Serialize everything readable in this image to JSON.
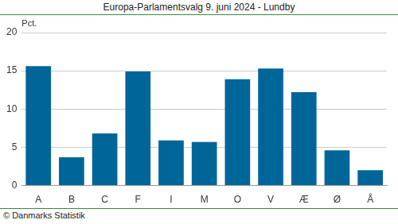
{
  "chart_data": {
    "type": "bar",
    "title": "Europa-Parlamentsvalg 9. juni 2024 - Lundby",
    "y_label": "Pct.",
    "source": "© Danmarks Statistik",
    "categories": [
      "A",
      "B",
      "C",
      "F",
      "I",
      "M",
      "O",
      "V",
      "Æ",
      "Ø",
      "Å"
    ],
    "values": [
      15.6,
      3.7,
      6.8,
      14.9,
      5.9,
      5.7,
      13.9,
      15.3,
      12.2,
      4.6,
      2.0
    ],
    "color": "#006699",
    "ylim": [
      0,
      20
    ],
    "yticks": [
      0,
      5,
      10,
      15,
      20
    ],
    "grid": true
  }
}
